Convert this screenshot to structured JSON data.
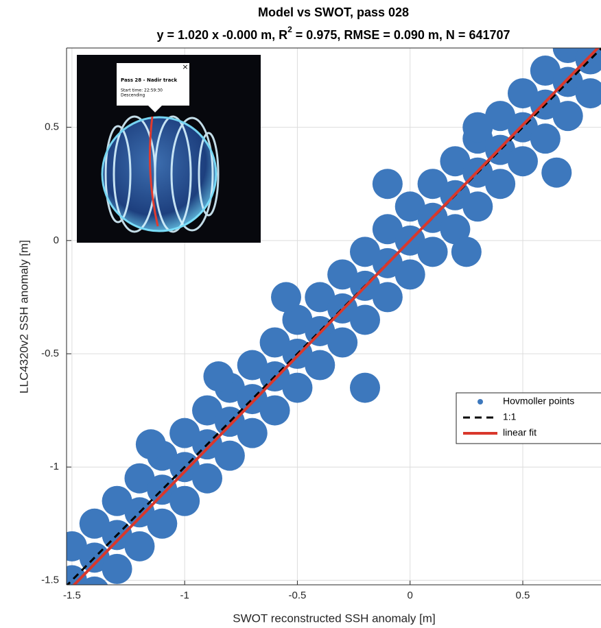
{
  "chart_data": {
    "type": "scatter",
    "title": "Model vs SWOT, pass 028",
    "subtitle_parts": [
      "y = 1.020 x -0.000 m, R",
      "2",
      " = 0.975, RMSE = 0.090 m, N = 641707"
    ],
    "x_label": "SWOT reconstructed SSH anomaly [m]",
    "y_label": "LLC4320v2 SSH anomaly [m]",
    "xlim": [
      -1.524,
      0.847
    ],
    "ylim": [
      -1.52,
      0.85
    ],
    "xticks": [
      -1.5,
      -1,
      -0.5,
      0,
      0.5
    ],
    "yticks": [
      -1.5,
      -1,
      -0.5,
      0,
      0.5
    ],
    "grid": true,
    "legend": "east",
    "series": [
      {
        "name": "Hovmoller points",
        "type": "scatter",
        "color": "#3d78bd",
        "x": [
          -1.5,
          -1.5,
          -1.5,
          -1.4,
          -1.4,
          -1.4,
          -1.3,
          -1.3,
          -1.3,
          -1.2,
          -1.2,
          -1.2,
          -1.1,
          -1.1,
          -1.1,
          -1.0,
          -1.0,
          -1.0,
          -0.9,
          -0.9,
          -0.9,
          -0.8,
          -0.8,
          -0.8,
          -0.7,
          -0.7,
          -0.7,
          -0.6,
          -0.6,
          -0.6,
          -0.5,
          -0.5,
          -0.5,
          -0.4,
          -0.4,
          -0.4,
          -0.3,
          -0.3,
          -0.3,
          -0.2,
          -0.2,
          -0.2,
          -0.1,
          -0.1,
          -0.1,
          0,
          0,
          0,
          0.1,
          0.1,
          0.1,
          0.2,
          0.2,
          0.2,
          0.3,
          0.3,
          0.3,
          0.4,
          0.4,
          0.4,
          0.5,
          0.5,
          0.5,
          0.6,
          0.6,
          0.6,
          0.7,
          0.7,
          0.7,
          0.8,
          0.8,
          0.8,
          -1.15,
          -0.85,
          -0.55,
          -0.2,
          0.25,
          0.3,
          0.65,
          -0.1
        ],
        "values": [
          -1.65,
          -1.5,
          -1.35,
          -1.55,
          -1.4,
          -1.25,
          -1.45,
          -1.3,
          -1.15,
          -1.35,
          -1.2,
          -1.05,
          -1.25,
          -1.1,
          -0.95,
          -1.15,
          -1.0,
          -0.85,
          -1.05,
          -0.9,
          -0.75,
          -0.95,
          -0.8,
          -0.65,
          -0.85,
          -0.7,
          -0.55,
          -0.75,
          -0.6,
          -0.45,
          -0.65,
          -0.5,
          -0.35,
          -0.55,
          -0.4,
          -0.25,
          -0.45,
          -0.3,
          -0.15,
          -0.35,
          -0.2,
          -0.05,
          -0.25,
          -0.1,
          0.05,
          -0.15,
          0,
          0.15,
          -0.05,
          0.1,
          0.25,
          0.05,
          0.2,
          0.35,
          0.15,
          0.3,
          0.45,
          0.25,
          0.4,
          0.55,
          0.35,
          0.5,
          0.65,
          0.45,
          0.6,
          0.75,
          0.55,
          0.7,
          0.85,
          0.65,
          0.8,
          0.95,
          -0.9,
          -0.6,
          -0.25,
          -0.65,
          -0.05,
          0.5,
          0.3,
          0.25
        ]
      },
      {
        "name": "1:1",
        "type": "line",
        "color": "#000000",
        "dashed": true,
        "x": [
          -1.53,
          0.85
        ],
        "values": [
          -1.53,
          0.85
        ]
      },
      {
        "name": "linear fit",
        "type": "line",
        "color": "#d9382c",
        "dashed": false,
        "x": [
          -1.53,
          0.85
        ],
        "values": [
          -1.5606,
          0.867
        ]
      }
    ]
  },
  "inset": {
    "close": "×",
    "popup_title": "Pass 28 - Nadir track",
    "start_time": "Start time: 22:59:30",
    "direction": "Descending"
  }
}
